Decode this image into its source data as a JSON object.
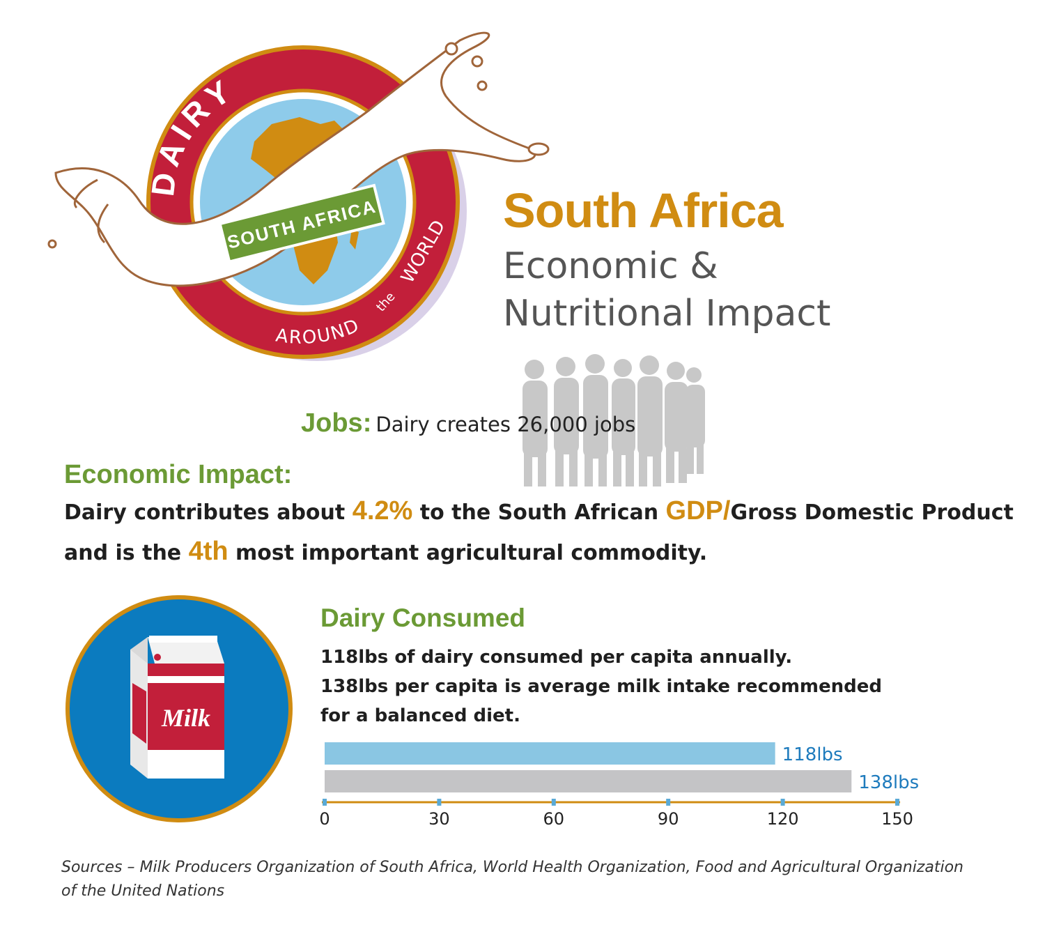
{
  "logo": {
    "word_top": "DAIRY",
    "banner": "SOUTH AFRICA",
    "bottom_a": "AROUND",
    "bottom_b": "the",
    "bottom_c": "WORLD"
  },
  "header": {
    "title": "South Africa",
    "subtitle_line1": "Economic &",
    "subtitle_line2": "Nutritional Impact"
  },
  "jobs": {
    "label": "Jobs:",
    "text": "Dairy creates 26,000 jobs"
  },
  "economic": {
    "heading": "Economic Impact:",
    "line1_a": "Dairy contributes about ",
    "line1_hl1": "4.2%",
    "line1_b": " to the South African ",
    "line1_hl2": "GDP/",
    "line1_c": "Gross Domestic Product",
    "line2_a": "and is the ",
    "line2_hl": "4th",
    "line2_b": " most important agricultural commodity."
  },
  "milk_icon": {
    "label": "Milk"
  },
  "consumed": {
    "heading": "Dairy Consumed",
    "line1": "118lbs of dairy consumed per capita annually.",
    "line2": "138lbs per capita is average milk intake recommended",
    "line3": "for a balanced diet."
  },
  "chart_data": {
    "type": "bar",
    "orientation": "horizontal",
    "categories": [
      "",
      ""
    ],
    "values": [
      118,
      138
    ],
    "data_labels": [
      "118lbs",
      "138lbs"
    ],
    "colors": [
      "#8ac6e3",
      "#c4c4c6"
    ],
    "label_colors": [
      "#1e7bbd",
      "#1e7bbd"
    ],
    "axis_color": "#d08c12",
    "tick_color": "#5aaad6",
    "xlim": [
      0,
      150
    ],
    "xticks": [
      0,
      30,
      60,
      90,
      120,
      150
    ],
    "xtick_labels": [
      "0",
      "30",
      "60",
      "90",
      "120",
      "150"
    ],
    "title": "",
    "xlabel": "",
    "ylabel": "",
    "grid": false
  },
  "sources": "Sources – Milk Producers Organization of South Africa, World Health Organization, Food and Agricultural Organization of the United Nations"
}
